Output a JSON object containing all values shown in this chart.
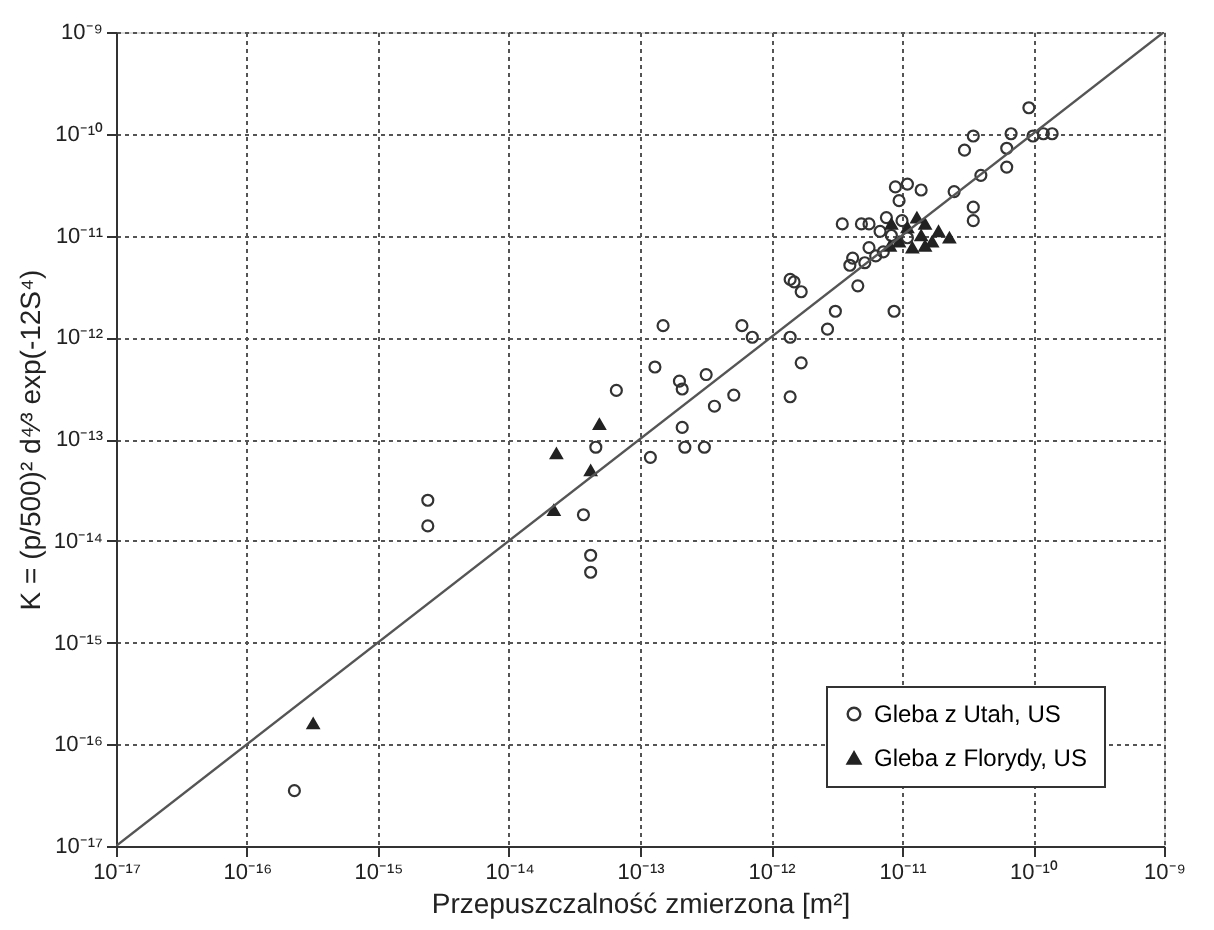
{
  "chart_data": {
    "type": "scatter",
    "xlabel": "Przepuszczalność zmierzona [m²]",
    "ylabel": "K = (p/500)² d⁴⁄³ exp(-12S⁴)",
    "log": "xy",
    "grid": true,
    "legend": "bottom right",
    "xlim": [
      1e-17,
      1e-09
    ],
    "ylim": [
      1e-17,
      1e-09
    ],
    "xticks": [
      {
        "value": 1e-17,
        "label": "10⁻¹⁷"
      },
      {
        "value": 1e-16,
        "label": "10⁻¹⁶"
      },
      {
        "value": 1e-15,
        "label": "10⁻¹⁵"
      },
      {
        "value": 1e-14,
        "label": "10⁻¹⁴"
      },
      {
        "value": 1e-13,
        "label": "10⁻¹³"
      },
      {
        "value": 1e-12,
        "label": "10⁻¹²"
      },
      {
        "value": 1e-11,
        "label": "10⁻¹¹"
      },
      {
        "value": 1e-10,
        "label": "10⁻¹⁰"
      },
      {
        "value": 1e-09,
        "label": "10⁻⁹"
      }
    ],
    "yticks": [
      {
        "value": 1e-17,
        "label": "10⁻¹⁷"
      },
      {
        "value": 1e-16,
        "label": "10⁻¹⁶"
      },
      {
        "value": 1e-15,
        "label": "10⁻¹⁵"
      },
      {
        "value": 1e-14,
        "label": "10⁻¹⁴"
      },
      {
        "value": 1e-13,
        "label": "10⁻¹³"
      },
      {
        "value": 1e-12,
        "label": "10⁻¹²"
      },
      {
        "value": 1e-11,
        "label": "10⁻¹¹"
      },
      {
        "value": 1e-10,
        "label": "10⁻¹⁰"
      },
      {
        "value": 1e-09,
        "label": "10⁻⁹"
      }
    ],
    "series": [
      {
        "name": "Gleba z Utah, US",
        "color": "#333333",
        "marker": "circle",
        "x": [
          2.3e-16,
          2.4e-15,
          2.4e-15,
          4.2e-14,
          4.2e-14,
          3.7e-14,
          4.6e-14,
          1.2e-13,
          2.2e-13,
          3.1e-13,
          2.1e-13,
          6.6e-14,
          1.3e-13,
          2e-13,
          2.1e-13,
          3.2e-13,
          3.7e-13,
          5.2e-13,
          1.4e-12,
          1.5e-13,
          6e-13,
          7.2e-13,
          1.4e-12,
          1.7e-12,
          1.5e-12,
          1.7e-12,
          3.1e-12,
          2.7e-12,
          4.6e-12,
          8.7e-12,
          3.5e-12,
          4.9e-12,
          5.6e-12,
          6.8e-12,
          7.6e-12,
          8.3e-12,
          1e-11,
          1.1e-11,
          5.6e-12,
          6.3e-12,
          4.2e-12,
          4e-12,
          5.2e-12,
          7.2e-12,
          8.9e-12,
          1.1e-11,
          1.4e-11,
          9.5e-12,
          2.5e-11,
          3.5e-11,
          3.5e-11,
          4e-11,
          6.3e-11,
          3.5e-11,
          3e-11,
          6.8e-11,
          6.3e-11,
          1e-10,
          1.2e-10,
          1.4e-10,
          9.3e-11,
          1.4e-12
        ],
        "values": [
          3.5e-17,
          2.5e-14,
          1.4e-14,
          7.2e-15,
          4.9e-15,
          1.8e-14,
          8.3e-14,
          6.6e-14,
          8.3e-14,
          8.3e-14,
          1.3e-13,
          3e-13,
          5.1e-13,
          3.7e-13,
          3.1e-13,
          4.3e-13,
          2.1e-13,
          2.7e-13,
          2.6e-13,
          1.3e-12,
          1.3e-12,
          1e-12,
          1e-12,
          5.6e-13,
          3.5e-12,
          2.8e-12,
          1.8e-12,
          1.2e-12,
          3.2e-12,
          1.8e-12,
          1.3e-11,
          1.3e-11,
          1.3e-11,
          1.1e-11,
          1.5e-11,
          1e-11,
          1.4e-11,
          9.5e-12,
          7.6e-12,
          6.3e-12,
          6e-12,
          5.1e-12,
          5.4e-12,
          6.9e-12,
          3e-11,
          3.2e-11,
          2.8e-11,
          2.2e-11,
          2.7e-11,
          1.9e-11,
          1.4e-11,
          3.9e-11,
          4.7e-11,
          9.5e-11,
          6.9e-11,
          1e-10,
          7.2e-11,
          9.5e-11,
          1e-10,
          1e-10,
          1.8e-10,
          3.7e-12
        ]
      },
      {
        "name": "Gleba z Florydy, US",
        "color": "#222222",
        "marker": "triangle",
        "x": [
          3.2e-16,
          4.9e-14,
          2.3e-14,
          4.2e-14,
          2.2e-14,
          8.3e-12,
          1.1e-11,
          1.3e-11,
          1.4e-11,
          1.5e-11,
          1.7e-11,
          1.9e-11,
          2.3e-11,
          9.5e-12,
          1.2e-11,
          1.5e-11,
          8.1e-12
        ],
        "values": [
          1.6e-16,
          1.4e-13,
          7.2e-14,
          4.9e-14,
          2e-14,
          1.3e-11,
          1.2e-11,
          1.5e-11,
          1e-11,
          1.3e-11,
          8.7e-12,
          1.1e-11,
          9.5e-12,
          8.7e-12,
          7.6e-12,
          7.9e-12,
          7.9e-12
        ]
      },
      {
        "type": "line",
        "color": "#555555",
        "x": [
          1e-17,
          1e-09
        ],
        "values": [
          1e-17,
          1e-09
        ]
      }
    ]
  }
}
